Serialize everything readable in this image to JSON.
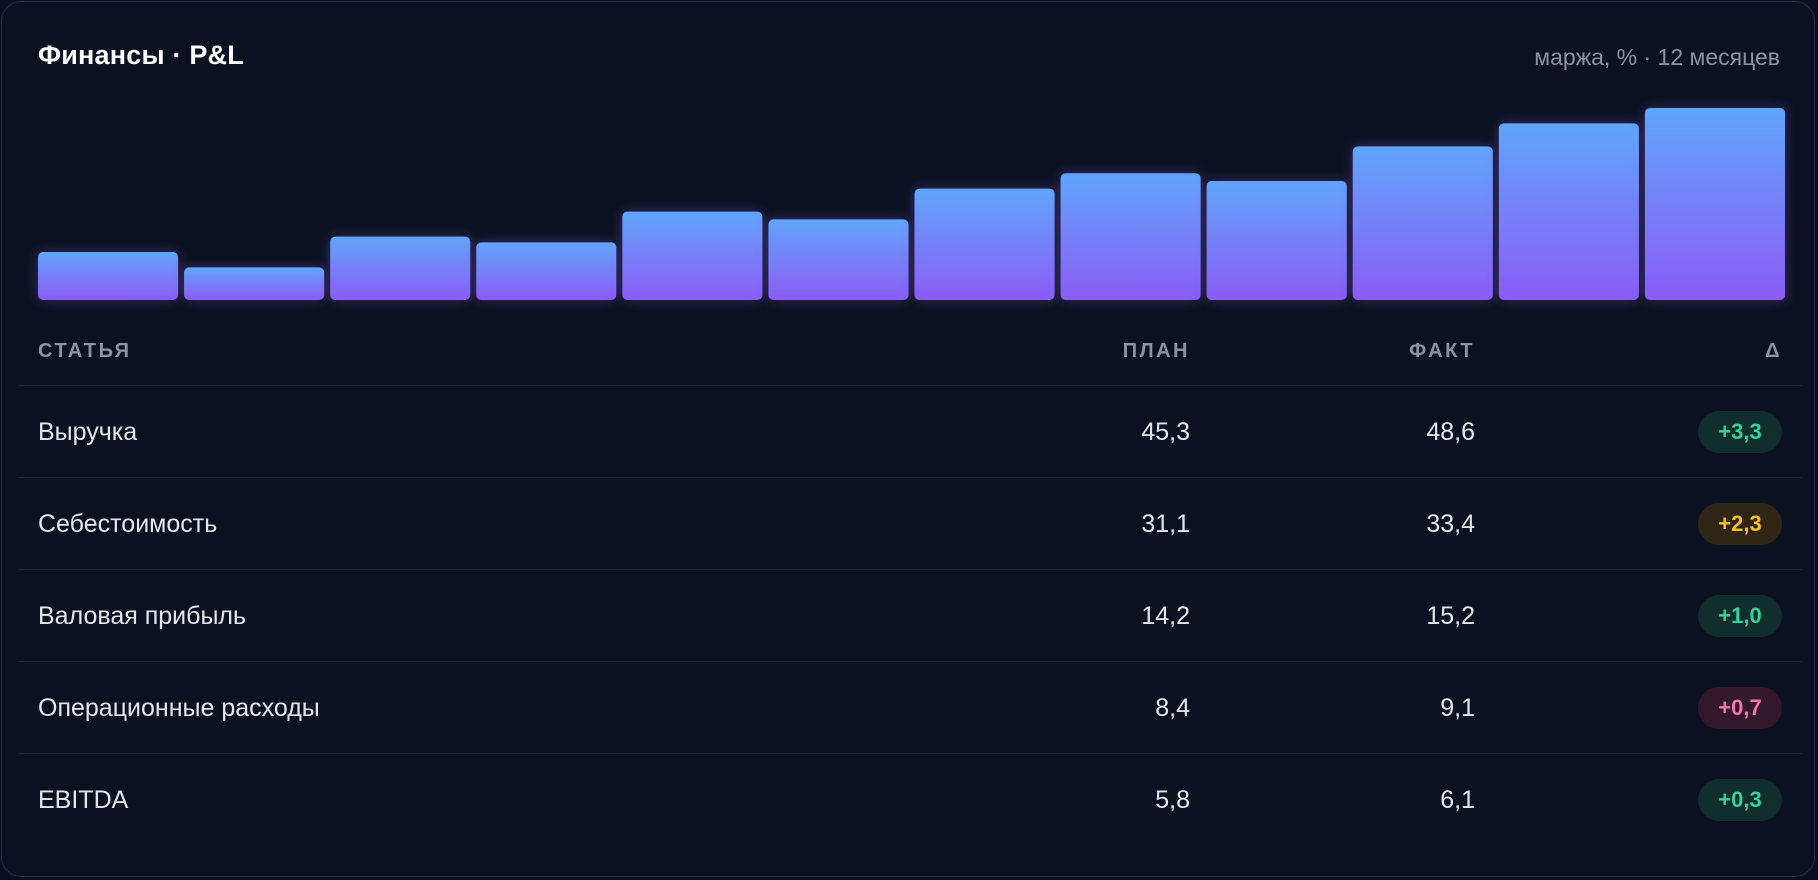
{
  "header": {
    "title": "Финансы · P&L",
    "subtitle": "маржа, % · 12 месяцев"
  },
  "colors": {
    "bar_top": "#60a5fa",
    "bar_bottom": "#8b5cf6",
    "positive": "#34d399",
    "warning": "#fbbf24",
    "negative": "#f472b6"
  },
  "chart_data": {
    "type": "bar",
    "title": "",
    "xlabel": "",
    "ylabel": "",
    "grid": false,
    "legend": "none",
    "ylim": [
      0,
      100
    ],
    "values": [
      25,
      17,
      33,
      30,
      46,
      42,
      58,
      66,
      62,
      80,
      92,
      100
    ]
  },
  "table": {
    "columns": {
      "name": "СТАТЬЯ",
      "plan": "ПЛАН",
      "fact": "ФАКТ",
      "delta": "Δ"
    },
    "rows": [
      {
        "name": "Выручка",
        "plan": "45,3",
        "fact": "48,6",
        "delta": "+3,3",
        "tone": "green"
      },
      {
        "name": "Себестоимость",
        "plan": "31,1",
        "fact": "33,4",
        "delta": "+2,3",
        "tone": "orange"
      },
      {
        "name": "Валовая прибыль",
        "plan": "14,2",
        "fact": "15,2",
        "delta": "+1,0",
        "tone": "green"
      },
      {
        "name": "Операционные расходы",
        "plan": "8,4",
        "fact": "9,1",
        "delta": "+0,7",
        "tone": "red"
      },
      {
        "name": "EBITDA",
        "plan": "5,8",
        "fact": "6,1",
        "delta": "+0,3",
        "tone": "green"
      }
    ]
  }
}
